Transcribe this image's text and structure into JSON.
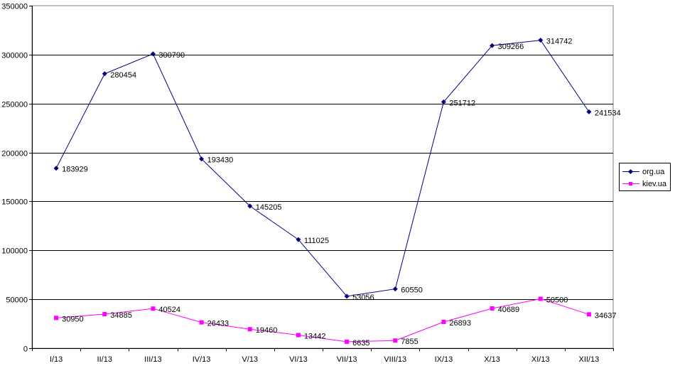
{
  "chart_data": {
    "type": "line",
    "title": "",
    "xlabel": "",
    "ylabel": "",
    "categories": [
      "I/13",
      "II/13",
      "III/13",
      "IV/13",
      "V/13",
      "VI/13",
      "VII/13",
      "VIII/13",
      "IX/13",
      "X/13",
      "XI/13",
      "XII/13"
    ],
    "ylim": [
      0,
      350000
    ],
    "yticks": [
      "0",
      "50000",
      "100000",
      "150000",
      "200000",
      "250000",
      "300000",
      "350000"
    ],
    "grid": true,
    "legend_position": "right",
    "series": [
      {
        "name": "org.ua",
        "color": "#000080",
        "marker": "diamond",
        "values": [
          183929,
          280454,
          300790,
          193430,
          145205,
          111025,
          53056,
          60550,
          251712,
          309266,
          314742,
          241534
        ],
        "labels": [
          "183929",
          "280454",
          "300790",
          "193430",
          "145205",
          "111025",
          "53056",
          "60550",
          "251712",
          "309266",
          "314742",
          "241534"
        ]
      },
      {
        "name": "kiev.ua",
        "color": "#ff00ff",
        "marker": "square",
        "values": [
          30950,
          34885,
          40524,
          26433,
          19460,
          13442,
          6635,
          7855,
          26893,
          40689,
          50500,
          34637
        ],
        "labels": [
          "30950",
          "34885",
          "40524",
          "26433",
          "19460",
          "13442",
          "6635",
          "7855",
          "26893",
          "40689",
          "50500",
          "34637"
        ]
      }
    ]
  }
}
